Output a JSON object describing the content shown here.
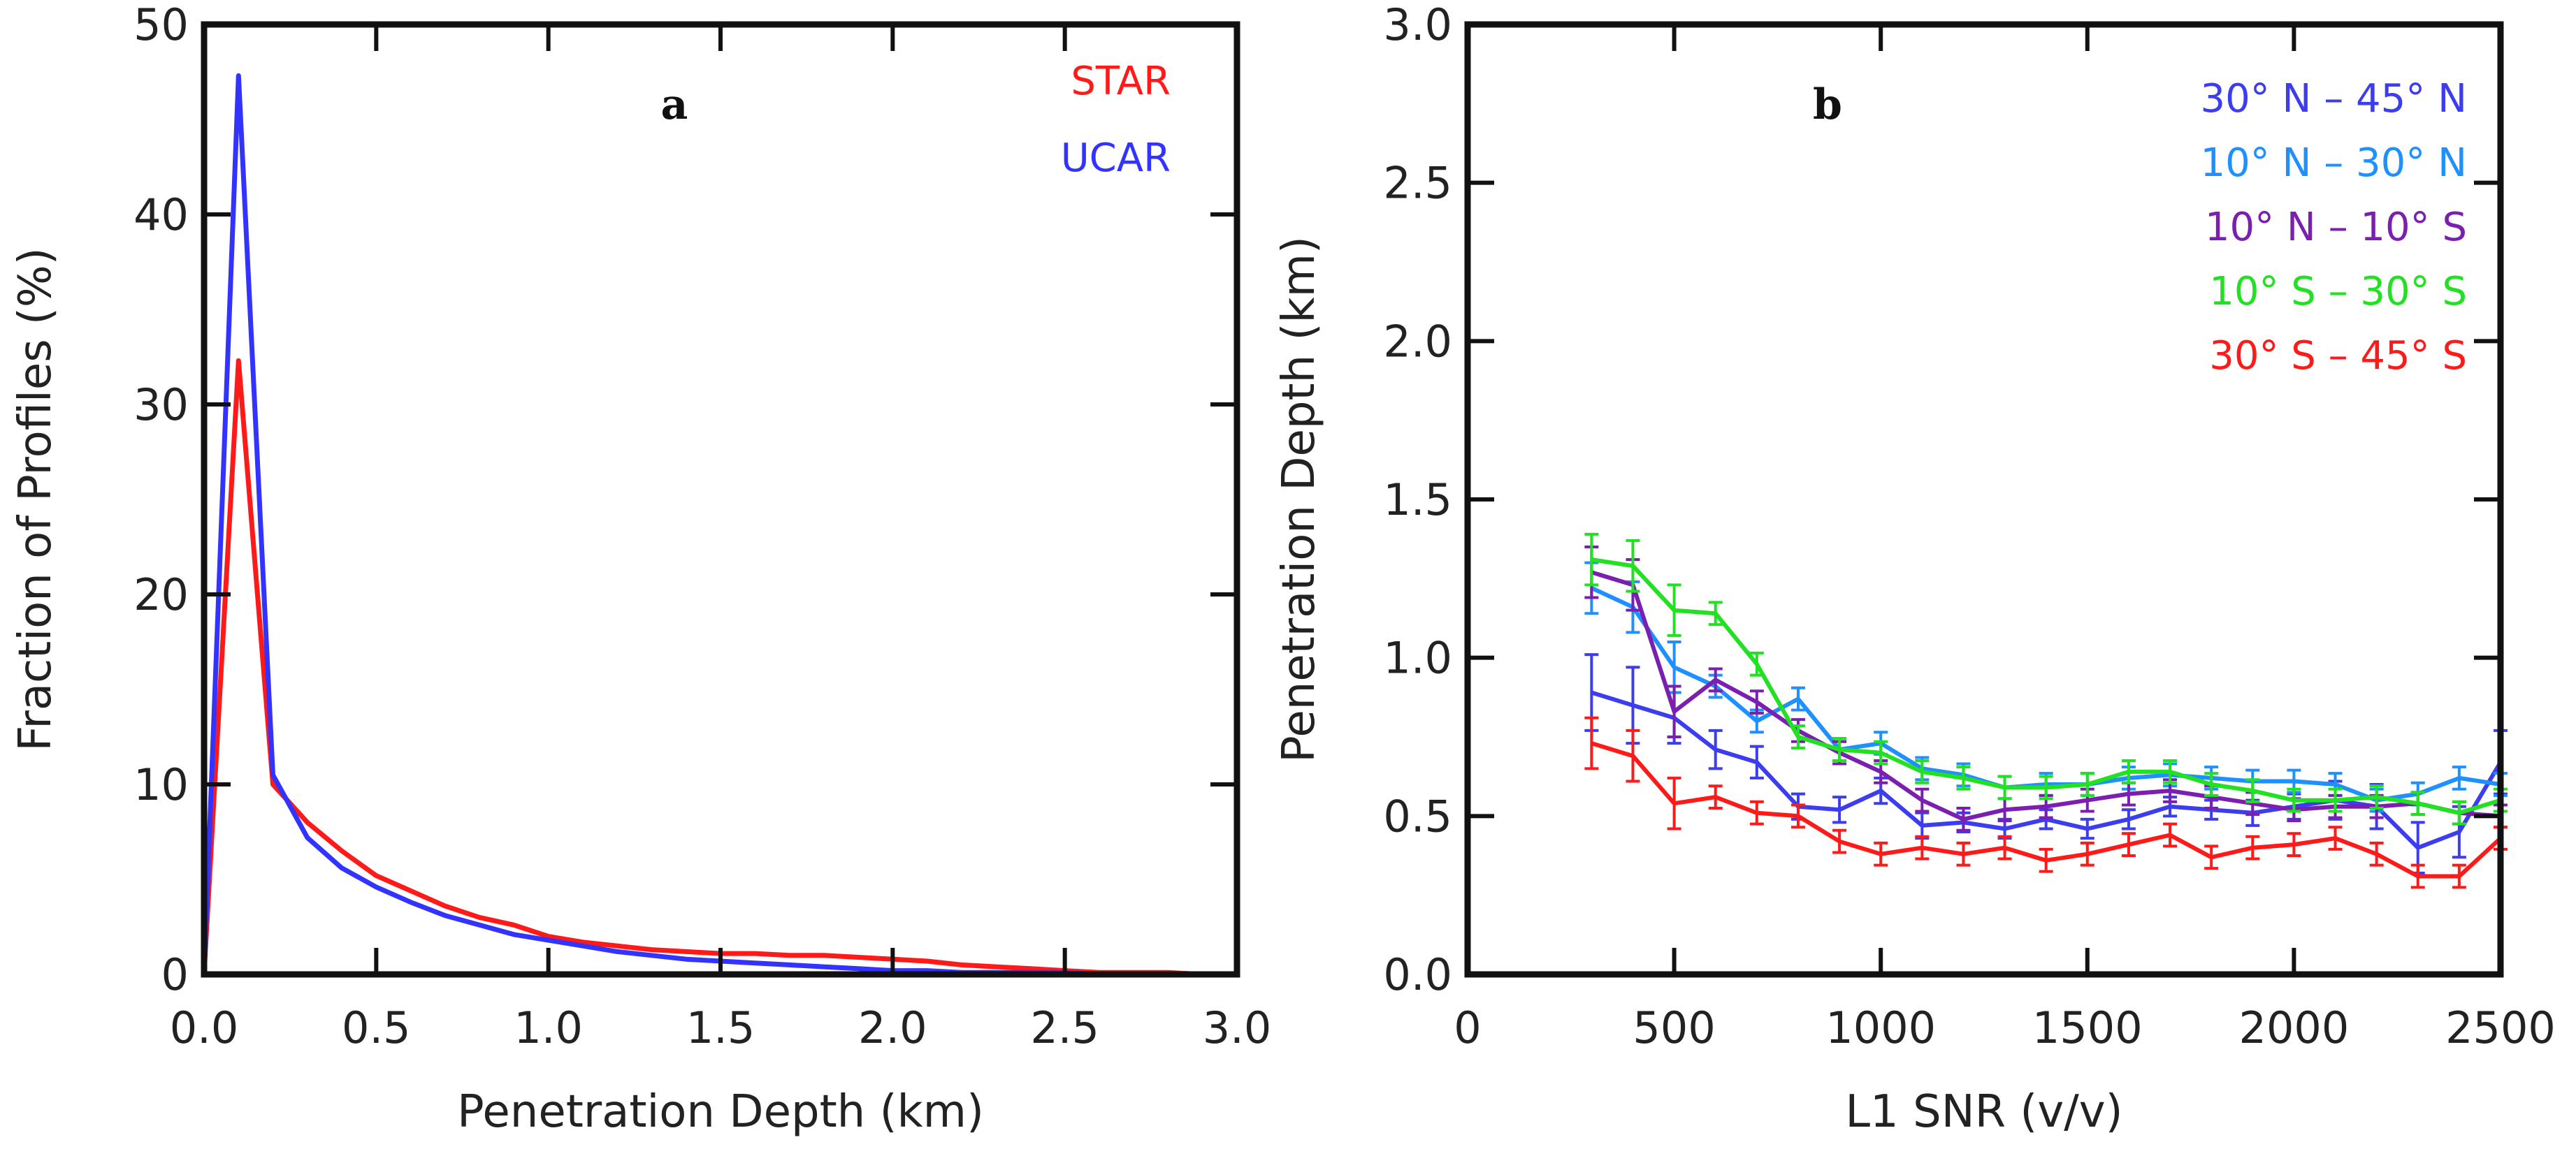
{
  "chart_data": [
    {
      "panel_label": "a",
      "type": "line",
      "xlabel": "Penetration Depth (km)",
      "ylabel": "Fraction of Profiles (%)",
      "xlim": [
        0,
        3.0
      ],
      "ylim": [
        0,
        50
      ],
      "xticks": [
        "0.0",
        "0.5",
        "1.0",
        "1.5",
        "2.0",
        "2.5",
        "3.0"
      ],
      "xtick_values": [
        0,
        0.5,
        1.0,
        1.5,
        2.0,
        2.5,
        3.0
      ],
      "yticks": [
        "0",
        "10",
        "20",
        "30",
        "40",
        "50"
      ],
      "ytick_values": [
        0,
        10,
        20,
        30,
        40,
        50
      ],
      "legend": [
        "STAR",
        "UCAR"
      ],
      "legend_location": "top-right",
      "series": [
        {
          "name": "STAR",
          "color": "#ff1a1a",
          "x": [
            0,
            0.1,
            0.2,
            0.3,
            0.4,
            0.5,
            0.6,
            0.7,
            0.8,
            0.9,
            1.0,
            1.1,
            1.2,
            1.3,
            1.4,
            1.5,
            1.6,
            1.7,
            1.8,
            1.9,
            2.0,
            2.1,
            2.2,
            2.3,
            2.4,
            2.5,
            2.6,
            2.7,
            2.8,
            2.9,
            3.0
          ],
          "values": [
            0,
            32.3,
            10.0,
            8.0,
            6.5,
            5.2,
            4.4,
            3.6,
            3.0,
            2.6,
            2.0,
            1.7,
            1.5,
            1.3,
            1.2,
            1.1,
            1.1,
            1.0,
            1.0,
            0.9,
            0.8,
            0.7,
            0.5,
            0.4,
            0.3,
            0.2,
            0.1,
            0.1,
            0.1,
            0.0,
            0.0
          ]
        },
        {
          "name": "UCAR",
          "color": "#3333ff",
          "x": [
            0,
            0.1,
            0.2,
            0.3,
            0.4,
            0.5,
            0.6,
            0.7,
            0.8,
            0.9,
            1.0,
            1.1,
            1.2,
            1.3,
            1.4,
            1.5,
            1.6,
            1.7,
            1.8,
            1.9,
            2.0,
            2.1,
            2.2,
            2.3,
            2.4,
            2.5,
            2.6,
            2.7,
            2.8,
            2.9,
            3.0
          ],
          "values": [
            0,
            47.3,
            10.5,
            7.2,
            5.6,
            4.6,
            3.8,
            3.1,
            2.6,
            2.1,
            1.8,
            1.5,
            1.2,
            1.0,
            0.8,
            0.7,
            0.6,
            0.5,
            0.4,
            0.3,
            0.2,
            0.2,
            0.1,
            0.1,
            0.1,
            0.1,
            0.0,
            0.0,
            0.0,
            0.0,
            0.0
          ]
        }
      ]
    },
    {
      "panel_label": "b",
      "type": "line",
      "xlabel": "L1 SNR (v/v)",
      "ylabel": "Penetration Depth (km)",
      "xlim": [
        0,
        2500
      ],
      "ylim": [
        0,
        3.0
      ],
      "xticks": [
        "0",
        "500",
        "1000",
        "1500",
        "2000",
        "2500"
      ],
      "xtick_values": [
        0,
        500,
        1000,
        1500,
        2000,
        2500
      ],
      "yticks": [
        "0.0",
        "0.5",
        "1.0",
        "1.5",
        "2.0",
        "2.5",
        "3.0"
      ],
      "ytick_values": [
        0,
        0.5,
        1.0,
        1.5,
        2.0,
        2.5,
        3.0
      ],
      "legend": [
        "30° N – 45° N",
        "10° N – 30° N",
        "10° N – 10° S",
        "10° S – 30° S",
        "30° S – 45° S"
      ],
      "legend_location": "top-right",
      "x": [
        300,
        400,
        500,
        600,
        700,
        800,
        900,
        1000,
        1100,
        1200,
        1300,
        1400,
        1500,
        1600,
        1700,
        1800,
        1900,
        2000,
        2100,
        2200,
        2300,
        2400,
        2500
      ],
      "series": [
        {
          "name": "30° N – 45° N",
          "color": "#3d3df0",
          "values": [
            0.89,
            0.85,
            0.81,
            0.71,
            0.67,
            0.53,
            0.52,
            0.58,
            0.47,
            0.48,
            0.46,
            0.49,
            0.46,
            0.49,
            0.53,
            0.52,
            0.51,
            0.53,
            0.55,
            0.53,
            0.4,
            0.45,
            0.67
          ],
          "errors": [
            0.12,
            0.12,
            0.08,
            0.06,
            0.05,
            0.04,
            0.04,
            0.04,
            0.04,
            0.03,
            0.03,
            0.03,
            0.03,
            0.03,
            0.03,
            0.03,
            0.04,
            0.04,
            0.06,
            0.07,
            0.08,
            0.08,
            0.1
          ]
        },
        {
          "name": "10° N – 30° N",
          "color": "#1e90ff",
          "values": [
            1.22,
            1.16,
            0.97,
            0.91,
            0.8,
            0.87,
            0.71,
            0.73,
            0.65,
            0.63,
            0.59,
            0.6,
            0.6,
            0.62,
            0.63,
            0.62,
            0.61,
            0.61,
            0.6,
            0.55,
            0.57,
            0.62,
            0.6
          ]
        },
        {
          "name": "10° N – 10° S",
          "color": "#7a1fb0",
          "values": [
            1.27,
            1.23,
            0.83,
            0.93,
            0.86,
            0.77,
            0.7,
            0.64,
            0.55,
            0.49,
            0.52,
            0.53,
            0.55,
            0.57,
            0.58,
            0.56,
            0.54,
            0.52,
            0.53,
            0.53,
            0.54,
            0.51,
            0.5
          ]
        },
        {
          "name": "10° S – 30° S",
          "color": "#22e022",
          "values": [
            1.31,
            1.29,
            1.15,
            1.14,
            0.98,
            0.75,
            0.71,
            0.7,
            0.64,
            0.62,
            0.59,
            0.59,
            0.6,
            0.64,
            0.64,
            0.6,
            0.58,
            0.55,
            0.55,
            0.56,
            0.54,
            0.51,
            0.55
          ]
        },
        {
          "name": "30° S – 45° S",
          "color": "#ff1a1a",
          "values": [
            0.73,
            0.69,
            0.54,
            0.56,
            0.51,
            0.5,
            0.42,
            0.38,
            0.4,
            0.38,
            0.4,
            0.36,
            0.38,
            0.41,
            0.44,
            0.37,
            0.4,
            0.41,
            0.43,
            0.38,
            0.31,
            0.31,
            0.43
          ]
        }
      ]
    }
  ]
}
